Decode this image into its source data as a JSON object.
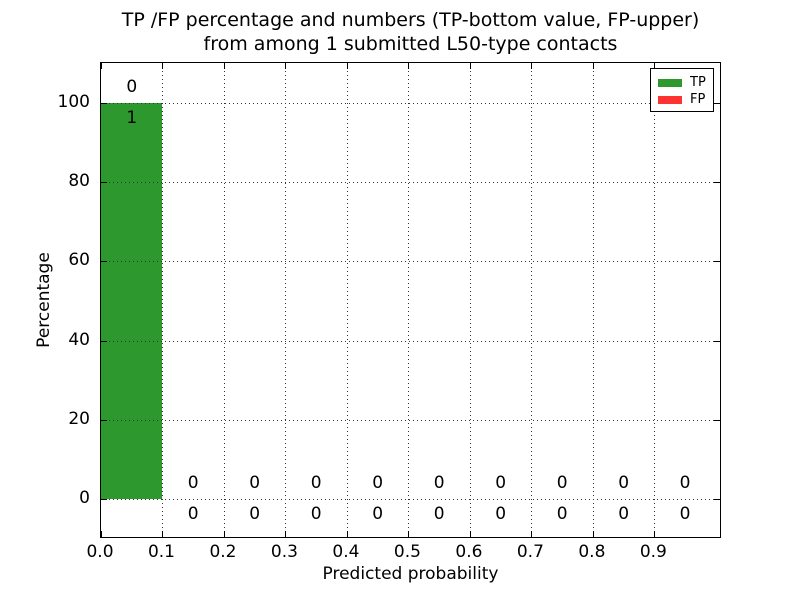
{
  "colors": {
    "tp_green": "#2d982d",
    "fp_red": "#ff3232",
    "grid": "#333333",
    "axis": "#000000",
    "text": "#000000",
    "background": "#ffffff"
  },
  "chart_data": {
    "type": "bar",
    "stacked": true,
    "title": "TP /FP percentage and numbers (TP-bottom value, FP-upper)",
    "subtitle": "from among 1 submitted L50-type contacts",
    "xlabel": "Predicted probability",
    "ylabel": "Percentage",
    "grid": {
      "style": "dotted",
      "axes": "both"
    },
    "legend_position": "upper right",
    "xlim": [
      0.0,
      1.01
    ],
    "ylim": [
      -10,
      110
    ],
    "bin_width": 0.1,
    "bin_edges": [
      0.0,
      0.1,
      0.2,
      0.3,
      0.4,
      0.5,
      0.6,
      0.7,
      0.8,
      0.9,
      1.0
    ],
    "xtick_values": [
      0.0,
      0.1,
      0.2,
      0.3,
      0.4,
      0.5,
      0.6,
      0.7,
      0.8,
      0.9
    ],
    "xtick_labels": [
      "0.0",
      "0.1",
      "0.2",
      "0.3",
      "0.4",
      "0.5",
      "0.6",
      "0.7",
      "0.8",
      "0.9"
    ],
    "ytick_values": [
      0,
      20,
      40,
      60,
      80,
      100
    ],
    "ytick_labels": [
      "0",
      "20",
      "40",
      "60",
      "80",
      "100"
    ],
    "series": [
      {
        "name": "TP",
        "color": "#2d982d",
        "count_label_position": "below-bar-top",
        "percentages": [
          100,
          0,
          0,
          0,
          0,
          0,
          0,
          0,
          0,
          0
        ],
        "counts": [
          1,
          0,
          0,
          0,
          0,
          0,
          0,
          0,
          0,
          0
        ]
      },
      {
        "name": "FP",
        "color": "#ff3232",
        "count_label_position": "above-bar-top",
        "percentages": [
          0,
          0,
          0,
          0,
          0,
          0,
          0,
          0,
          0,
          0
        ],
        "counts": [
          0,
          0,
          0,
          0,
          0,
          0,
          0,
          0,
          0,
          0
        ]
      }
    ]
  }
}
